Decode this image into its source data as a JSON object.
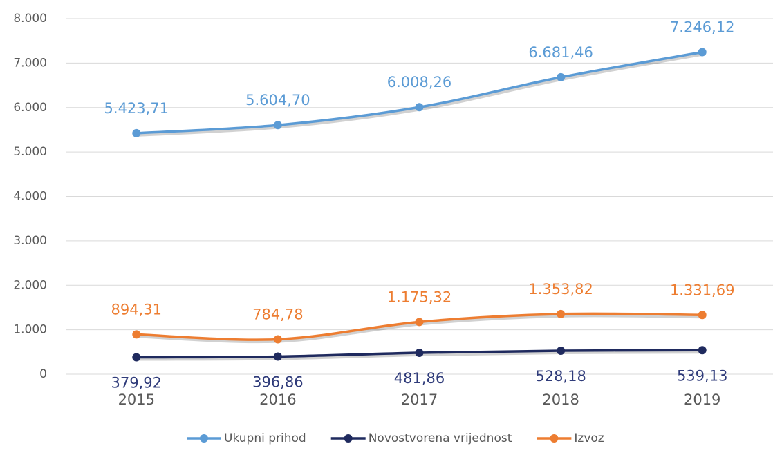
{
  "chart_data": {
    "type": "line",
    "categories": [
      "2015",
      "2016",
      "2017",
      "2018",
      "2019"
    ],
    "series": [
      {
        "name": "Ukupni prihod",
        "color": "#5b9bd5",
        "values": [
          5423.71,
          5604.7,
          6008.26,
          6681.46,
          7246.12
        ],
        "value_labels": [
          "5.423,71",
          "5.604,70",
          "6.008,26",
          "6.681,46",
          "7.246,12"
        ]
      },
      {
        "name": "Novostvorena vrijednost",
        "color": "#1f2a5e",
        "values": [
          379.92,
          396.86,
          481.86,
          528.18,
          539.13
        ],
        "value_labels": [
          "379,92",
          "396,86",
          "481,86",
          "528,18",
          "539,13"
        ]
      },
      {
        "name": "Izvoz",
        "color": "#ed7d31",
        "values": [
          894.31,
          784.78,
          1175.32,
          1353.82,
          1331.69
        ],
        "value_labels": [
          "894,31",
          "784,78",
          "1.175,32",
          "1.353,82",
          "1.331,69"
        ]
      }
    ],
    "ylim": [
      0,
      8000
    ],
    "yticks": [
      0,
      {
        "value": 1000,
        "label": "1.000"
      },
      {
        "value": 2000,
        "label": "2.000"
      },
      {
        "value": 3000,
        "label": "3.000"
      },
      {
        "value": 4000,
        "label": "4.000"
      },
      {
        "value": 5000,
        "label": "5.000"
      },
      {
        "value": 6000,
        "label": "6.000"
      },
      {
        "value": 7000,
        "label": "7.000"
      },
      {
        "value": 8000,
        "label": "8.000"
      }
    ],
    "grid": true,
    "legend": "bottom"
  }
}
